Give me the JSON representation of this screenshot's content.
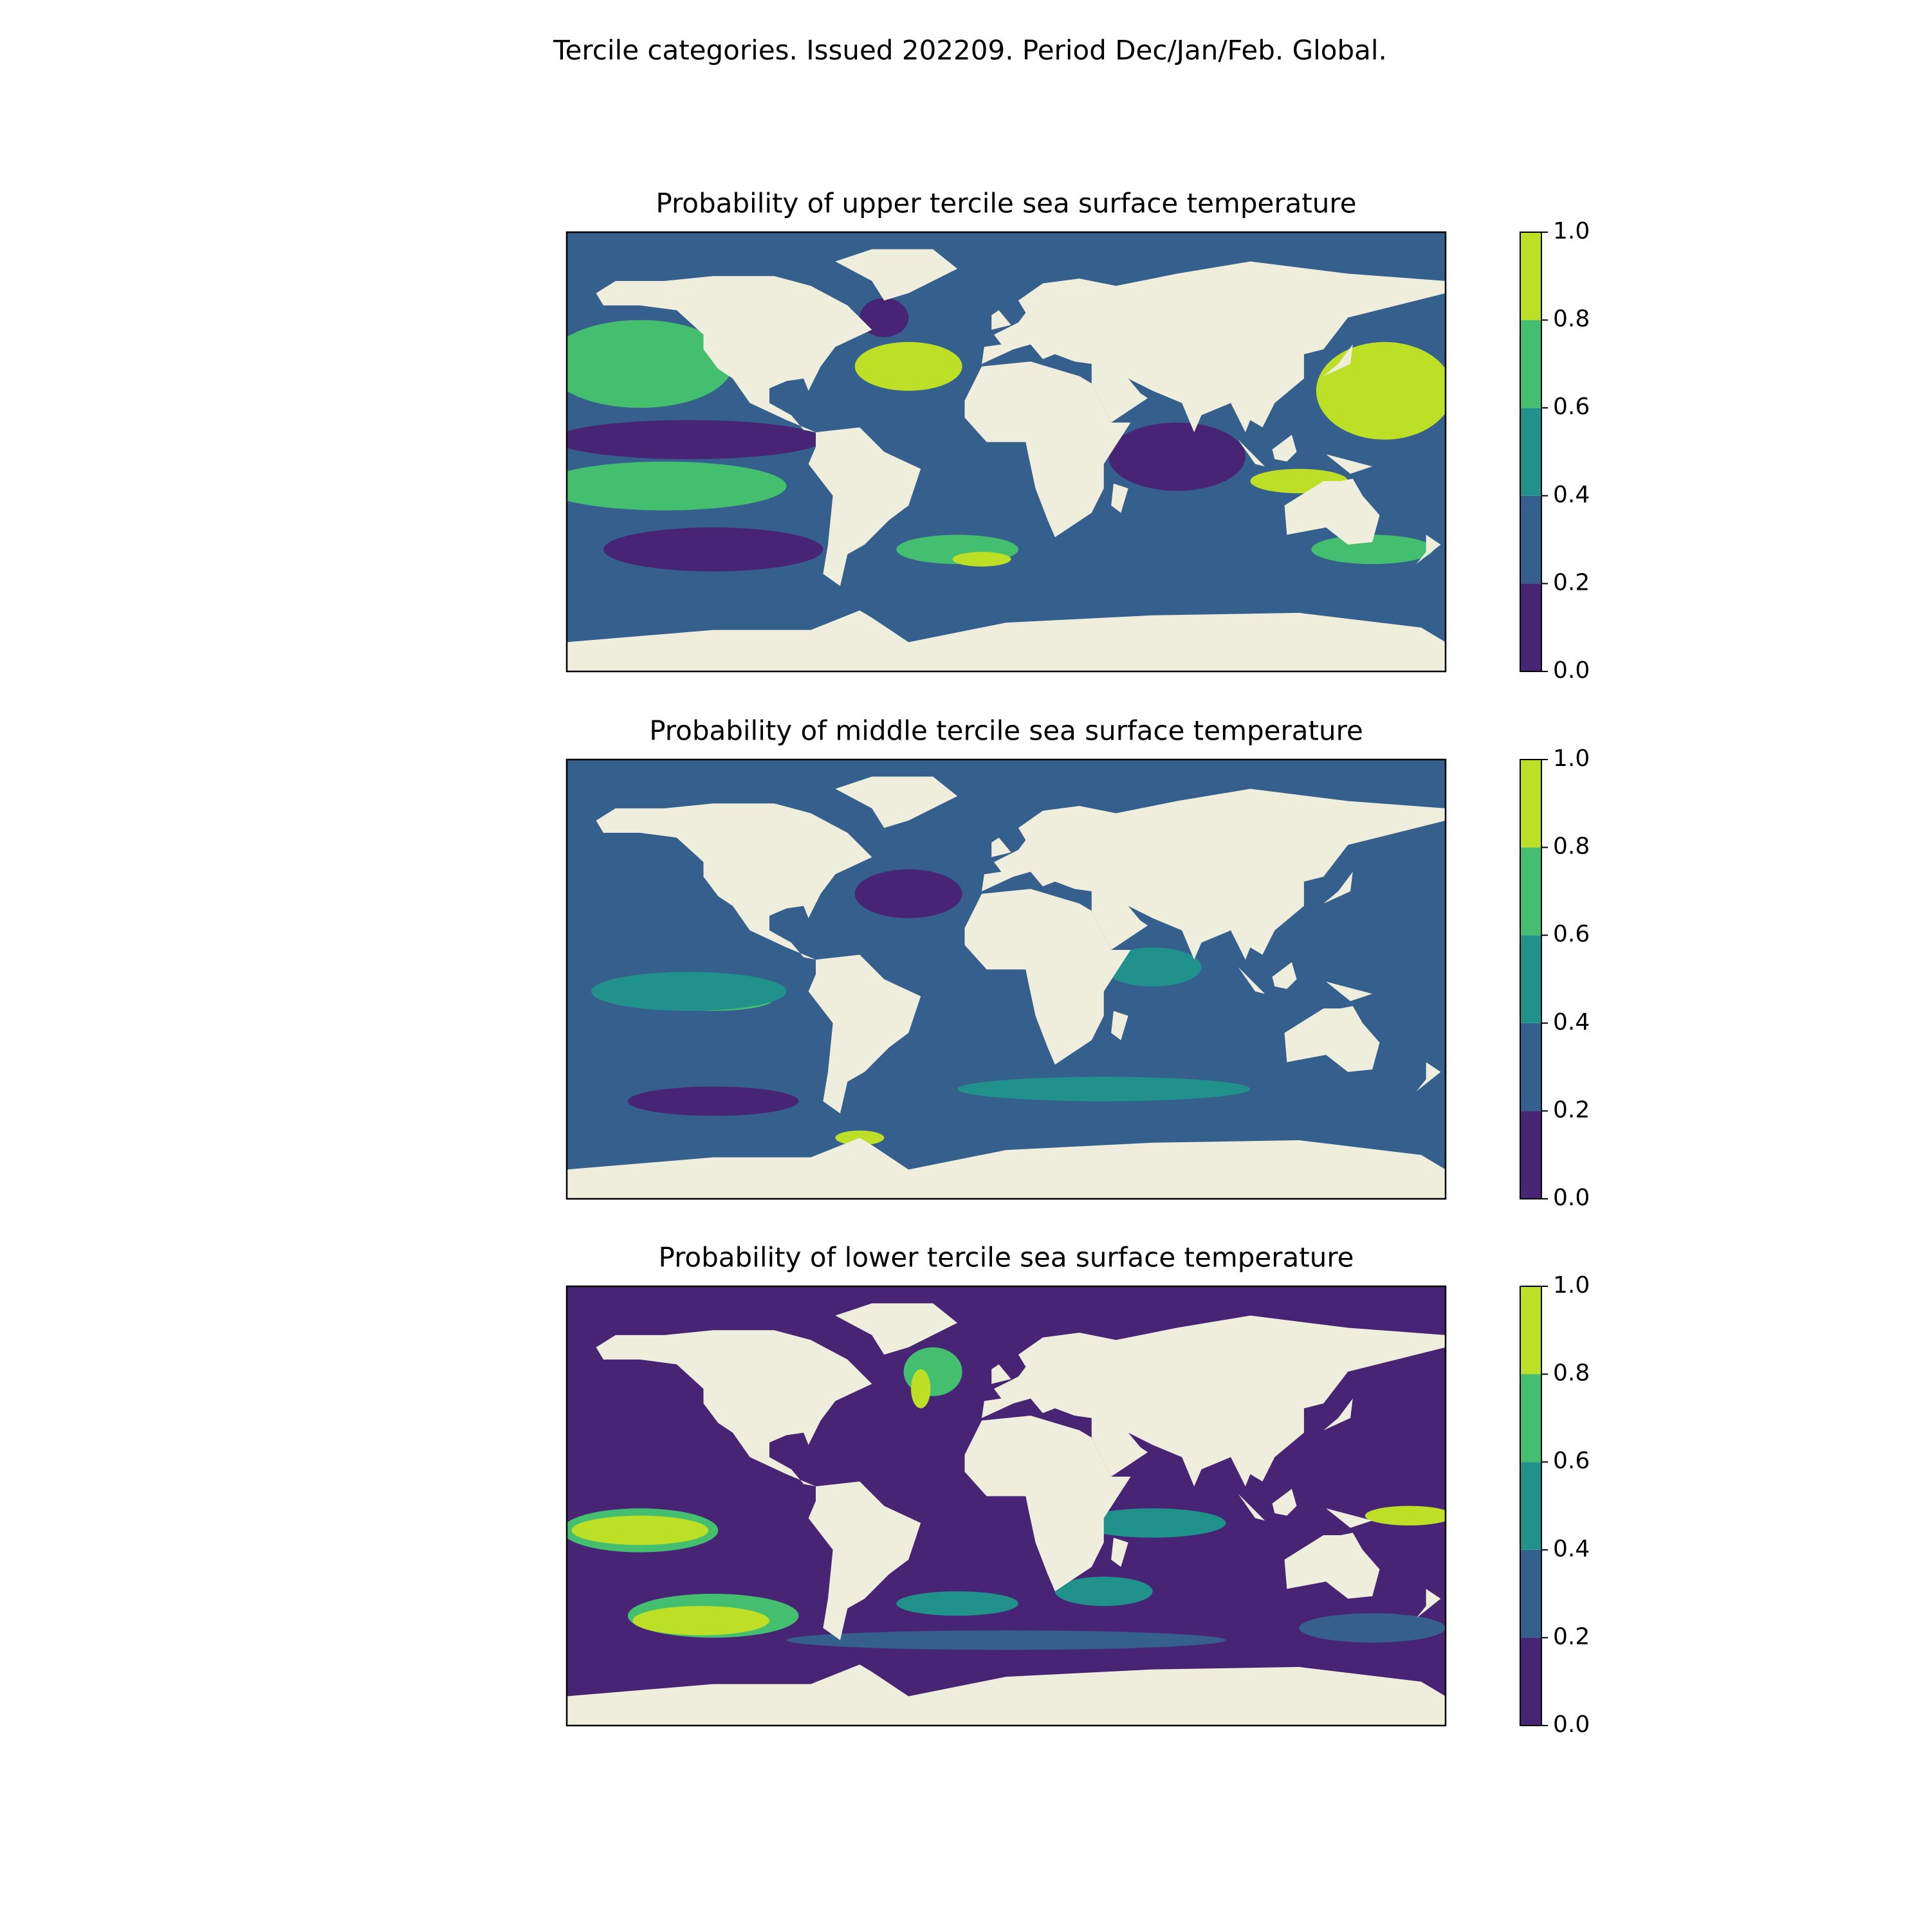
{
  "title": "Tercile categories. Issued 202209. Period Dec/Jan/Feb. Global.",
  "maps": [
    {
      "title": "Probability of upper tercile sea surface temperature"
    },
    {
      "title": "Probability of middle tercile sea surface temperature"
    },
    {
      "title": "Probability of lower tercile sea surface temperature"
    }
  ],
  "colorbar": {
    "ticks": [
      {
        "value": 0,
        "label": "0.0"
      },
      {
        "value": 0.2,
        "label": "0.2"
      },
      {
        "value": 0.4,
        "label": "0.4"
      },
      {
        "value": 0.6,
        "label": "0.6"
      },
      {
        "value": 0.8,
        "label": "0.8"
      },
      {
        "value": 1,
        "label": "1.0"
      }
    ],
    "colors": [
      "#482475",
      "#355f8d",
      "#21918c",
      "#44bf70",
      "#bddf26"
    ]
  },
  "land_color": "#efeedc"
}
